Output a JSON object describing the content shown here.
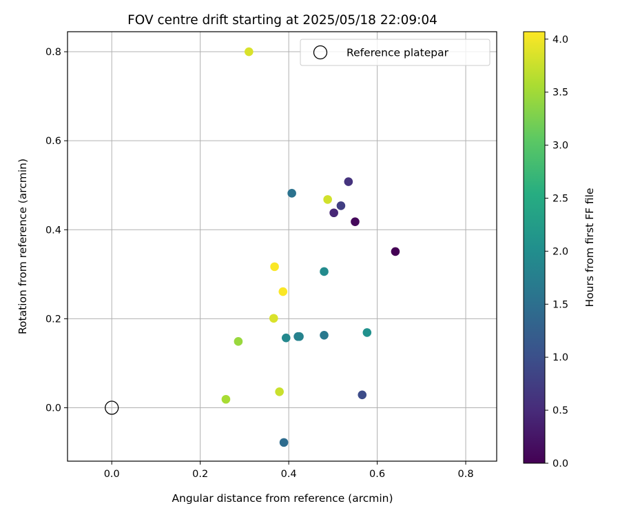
{
  "chart_data": {
    "type": "scatter",
    "title": "FOV centre drift starting at 2025/05/18 22:09:04",
    "xlabel": "Angular distance from reference (arcmin)",
    "ylabel": "Rotation from reference (arcmin)",
    "xlim": [
      -0.1,
      0.87
    ],
    "ylim": [
      -0.12,
      0.845
    ],
    "xticks": [
      0.0,
      0.2,
      0.4,
      0.6,
      0.8
    ],
    "yticks": [
      0.0,
      0.2,
      0.4,
      0.6,
      0.8
    ],
    "grid": true,
    "legend": {
      "placement": "top-right",
      "entries": [
        "Reference platepar"
      ]
    },
    "reference_point": {
      "x": 0.0,
      "y": 0.0,
      "marker": "open-circle"
    },
    "colorbar": {
      "label": "Hours from first FF file",
      "colormap": "viridis",
      "range": [
        0.0,
        4.07
      ],
      "ticks": [
        0.0,
        0.5,
        1.0,
        1.5,
        2.0,
        2.5,
        3.0,
        3.5,
        4.0
      ]
    },
    "points": [
      {
        "x": 0.641,
        "y": 0.351,
        "hours": 0.0
      },
      {
        "x": 0.55,
        "y": 0.418,
        "hours": 0.1
      },
      {
        "x": 0.502,
        "y": 0.438,
        "hours": 0.45
      },
      {
        "x": 0.535,
        "y": 0.508,
        "hours": 0.6
      },
      {
        "x": 0.518,
        "y": 0.454,
        "hours": 0.75
      },
      {
        "x": 0.566,
        "y": 0.029,
        "hours": 0.95
      },
      {
        "x": 0.389,
        "y": -0.078,
        "hours": 1.45
      },
      {
        "x": 0.407,
        "y": 0.482,
        "hours": 1.55
      },
      {
        "x": 0.48,
        "y": 0.163,
        "hours": 1.65
      },
      {
        "x": 0.421,
        "y": 0.16,
        "hours": 1.75
      },
      {
        "x": 0.424,
        "y": 0.16,
        "hours": 1.8
      },
      {
        "x": 0.394,
        "y": 0.157,
        "hours": 1.9
      },
      {
        "x": 0.48,
        "y": 0.306,
        "hours": 1.95
      },
      {
        "x": 0.577,
        "y": 0.169,
        "hours": 2.05
      },
      {
        "x": 0.286,
        "y": 0.149,
        "hours": 3.45
      },
      {
        "x": 0.258,
        "y": 0.019,
        "hours": 3.55
      },
      {
        "x": 0.379,
        "y": 0.036,
        "hours": 3.75
      },
      {
        "x": 0.488,
        "y": 0.468,
        "hours": 3.8
      },
      {
        "x": 0.31,
        "y": 0.8,
        "hours": 3.85
      },
      {
        "x": 0.366,
        "y": 0.201,
        "hours": 3.85
      },
      {
        "x": 0.368,
        "y": 0.317,
        "hours": 4.05
      },
      {
        "x": 0.387,
        "y": 0.261,
        "hours": 4.05
      }
    ]
  }
}
